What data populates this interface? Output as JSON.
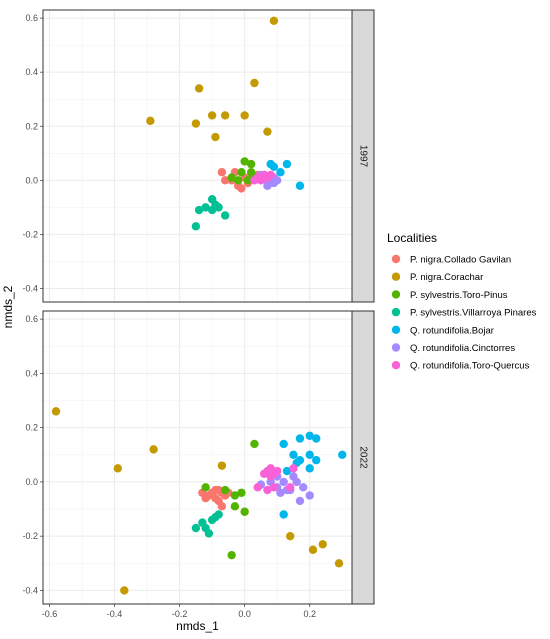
{
  "chart_data": {
    "type": "scatter",
    "xlabel": "nmds_1",
    "ylabel": "nmds_2",
    "xlim": [
      -0.62,
      0.33
    ],
    "ylim": [
      -0.45,
      0.63
    ],
    "x_ticks": [
      -0.6,
      -0.4,
      -0.2,
      0.0,
      0.2
    ],
    "x_tick_labels": [
      "-0.6",
      "-0.4",
      "-0.2",
      "0.0",
      "0.2"
    ],
    "y_ticks": [
      -0.4,
      -0.2,
      0.0,
      0.2,
      0.4,
      0.6
    ],
    "y_tick_labels": [
      "-0.4",
      "-0.2",
      "0.0",
      "0.2",
      "0.4",
      "0.6"
    ],
    "grid": true,
    "legend": {
      "title": "Localities",
      "position": "right",
      "entries": [
        {
          "name": "P. nigra.Collado Gavilan",
          "color": "#F8766D"
        },
        {
          "name": "P. nigra.Corachar",
          "color": "#C49A00"
        },
        {
          "name": "P. sylvestris.Toro-Pinus",
          "color": "#53B400"
        },
        {
          "name": "P. sylvestris.Villarroya Pinares",
          "color": "#00C094"
        },
        {
          "name": "Q. rotundifolia.Bojar",
          "color": "#00B6EB"
        },
        {
          "name": "Q. rotundifolia.Cinctorres",
          "color": "#A58AFF"
        },
        {
          "name": "Q. rotundifolia.Toro-Quercus",
          "color": "#FB61D7"
        }
      ]
    },
    "panels": [
      {
        "strip": "1997",
        "series": [
          {
            "name": "P. nigra.Collado Gavilan",
            "points": [
              [
                -0.07,
                0.03
              ],
              [
                -0.06,
                0.0
              ],
              [
                -0.03,
                0.03
              ],
              [
                -0.02,
                -0.02
              ],
              [
                -0.01,
                -0.03
              ],
              [
                0.0,
                0.01
              ],
              [
                0.02,
                0.02
              ],
              [
                0.04,
                0.02
              ],
              [
                -0.04,
                0.0
              ],
              [
                0.01,
                -0.01
              ]
            ]
          },
          {
            "name": "P. nigra.Corachar",
            "points": [
              [
                0.09,
                0.59
              ],
              [
                -0.14,
                0.34
              ],
              [
                -0.29,
                0.22
              ],
              [
                -0.15,
                0.21
              ],
              [
                -0.1,
                0.24
              ],
              [
                -0.06,
                0.24
              ],
              [
                0.0,
                0.24
              ],
              [
                0.03,
                0.36
              ],
              [
                0.07,
                0.18
              ],
              [
                -0.09,
                0.16
              ]
            ]
          },
          {
            "name": "P. sylvestris.Toro-Pinus",
            "points": [
              [
                0.0,
                0.07
              ],
              [
                0.02,
                0.06
              ],
              [
                -0.01,
                0.03
              ],
              [
                0.01,
                0.0
              ],
              [
                -0.02,
                0.0
              ],
              [
                0.03,
                0.01
              ],
              [
                -0.04,
                0.01
              ],
              [
                0.02,
                0.03
              ]
            ]
          },
          {
            "name": "P. sylvestris.Villarroya Pinares",
            "points": [
              [
                -0.15,
                -0.17
              ],
              [
                -0.14,
                -0.11
              ],
              [
                -0.12,
                -0.1
              ],
              [
                -0.1,
                -0.07
              ],
              [
                -0.09,
                -0.09
              ],
              [
                -0.1,
                -0.11
              ],
              [
                -0.08,
                -0.1
              ],
              [
                -0.06,
                -0.13
              ]
            ]
          },
          {
            "name": "Q. rotundifolia.Bojar",
            "points": [
              [
                0.08,
                0.06
              ],
              [
                0.13,
                0.06
              ],
              [
                0.17,
                -0.02
              ],
              [
                0.11,
                0.03
              ],
              [
                0.09,
                0.05
              ]
            ]
          },
          {
            "name": "Q. rotundifolia.Cinctorres",
            "points": [
              [
                0.05,
                0.02
              ],
              [
                0.06,
                0.01
              ],
              [
                0.07,
                0.0
              ],
              [
                0.08,
                0.01
              ],
              [
                0.09,
                -0.01
              ],
              [
                0.1,
                0.0
              ],
              [
                0.07,
                -0.02
              ],
              [
                0.06,
                0.02
              ],
              [
                0.09,
                0.01
              ]
            ]
          },
          {
            "name": "Q. rotundifolia.Toro-Quercus",
            "points": [
              [
                0.04,
                0.01
              ],
              [
                0.06,
                0.02
              ],
              [
                0.05,
                0.0
              ],
              [
                0.08,
                0.02
              ],
              [
                0.07,
                0.01
              ],
              [
                0.03,
                0.0
              ]
            ]
          }
        ]
      },
      {
        "strip": "2022",
        "series": [
          {
            "name": "P. nigra.Collado Gavilan",
            "points": [
              [
                -0.13,
                -0.04
              ],
              [
                -0.1,
                -0.04
              ],
              [
                -0.09,
                -0.06
              ],
              [
                -0.08,
                -0.07
              ],
              [
                -0.07,
                -0.04
              ],
              [
                -0.06,
                -0.05
              ],
              [
                -0.09,
                -0.03
              ],
              [
                -0.11,
                -0.05
              ],
              [
                -0.07,
                -0.09
              ],
              [
                -0.05,
                -0.04
              ],
              [
                -0.08,
                -0.03
              ],
              [
                -0.12,
                -0.06
              ]
            ]
          },
          {
            "name": "P. nigra.Corachar",
            "points": [
              [
                -0.58,
                0.26
              ],
              [
                -0.39,
                0.05
              ],
              [
                -0.28,
                0.12
              ],
              [
                -0.37,
                -0.4
              ],
              [
                -0.07,
                0.06
              ],
              [
                0.14,
                -0.2
              ],
              [
                0.21,
                -0.25
              ],
              [
                0.24,
                -0.23
              ],
              [
                0.29,
                -0.3
              ]
            ]
          },
          {
            "name": "P. sylvestris.Toro-Pinus",
            "points": [
              [
                -0.12,
                -0.02
              ],
              [
                -0.06,
                -0.03
              ],
              [
                -0.03,
                -0.05
              ],
              [
                -0.01,
                -0.04
              ],
              [
                -0.03,
                -0.09
              ],
              [
                0.0,
                -0.11
              ],
              [
                0.03,
                0.14
              ],
              [
                -0.04,
                -0.27
              ]
            ]
          },
          {
            "name": "P. sylvestris.Villarroya Pinares",
            "points": [
              [
                -0.15,
                -0.17
              ],
              [
                -0.13,
                -0.15
              ],
              [
                -0.12,
                -0.17
              ],
              [
                -0.1,
                -0.14
              ],
              [
                -0.09,
                -0.13
              ],
              [
                -0.11,
                -0.19
              ],
              [
                -0.08,
                -0.12
              ]
            ]
          },
          {
            "name": "Q. rotundifolia.Bojar",
            "points": [
              [
                0.12,
                0.14
              ],
              [
                0.17,
                0.16
              ],
              [
                0.2,
                0.17
              ],
              [
                0.22,
                0.16
              ],
              [
                0.15,
                0.1
              ],
              [
                0.17,
                0.08
              ],
              [
                0.2,
                0.1
              ],
              [
                0.22,
                0.08
              ],
              [
                0.13,
                0.04
              ],
              [
                0.16,
                0.07
              ],
              [
                0.2,
                0.05
              ],
              [
                0.3,
                0.1
              ],
              [
                0.12,
                -0.12
              ]
            ]
          },
          {
            "name": "Q. rotundifolia.Cinctorres",
            "points": [
              [
                0.05,
                -0.01
              ],
              [
                0.08,
                0.0
              ],
              [
                0.1,
                -0.02
              ],
              [
                0.12,
                0.0
              ],
              [
                0.14,
                -0.03
              ],
              [
                0.15,
                0.02
              ],
              [
                0.16,
                0.0
              ],
              [
                0.18,
                -0.02
              ],
              [
                0.2,
                -0.05
              ],
              [
                0.17,
                -0.07
              ],
              [
                0.13,
                -0.03
              ],
              [
                0.11,
                -0.04
              ],
              [
                0.1,
                0.02
              ]
            ]
          },
          {
            "name": "Q. rotundifolia.Toro-Quercus",
            "points": [
              [
                0.07,
                0.04
              ],
              [
                0.08,
                0.05
              ],
              [
                0.09,
                0.03
              ],
              [
                0.1,
                0.04
              ],
              [
                0.06,
                0.03
              ],
              [
                0.15,
                0.05
              ],
              [
                0.07,
                -0.03
              ],
              [
                0.09,
                -0.02
              ],
              [
                0.04,
                -0.02
              ],
              [
                0.14,
                -0.02
              ],
              [
                0.08,
                0.02
              ]
            ]
          }
        ]
      }
    ]
  }
}
